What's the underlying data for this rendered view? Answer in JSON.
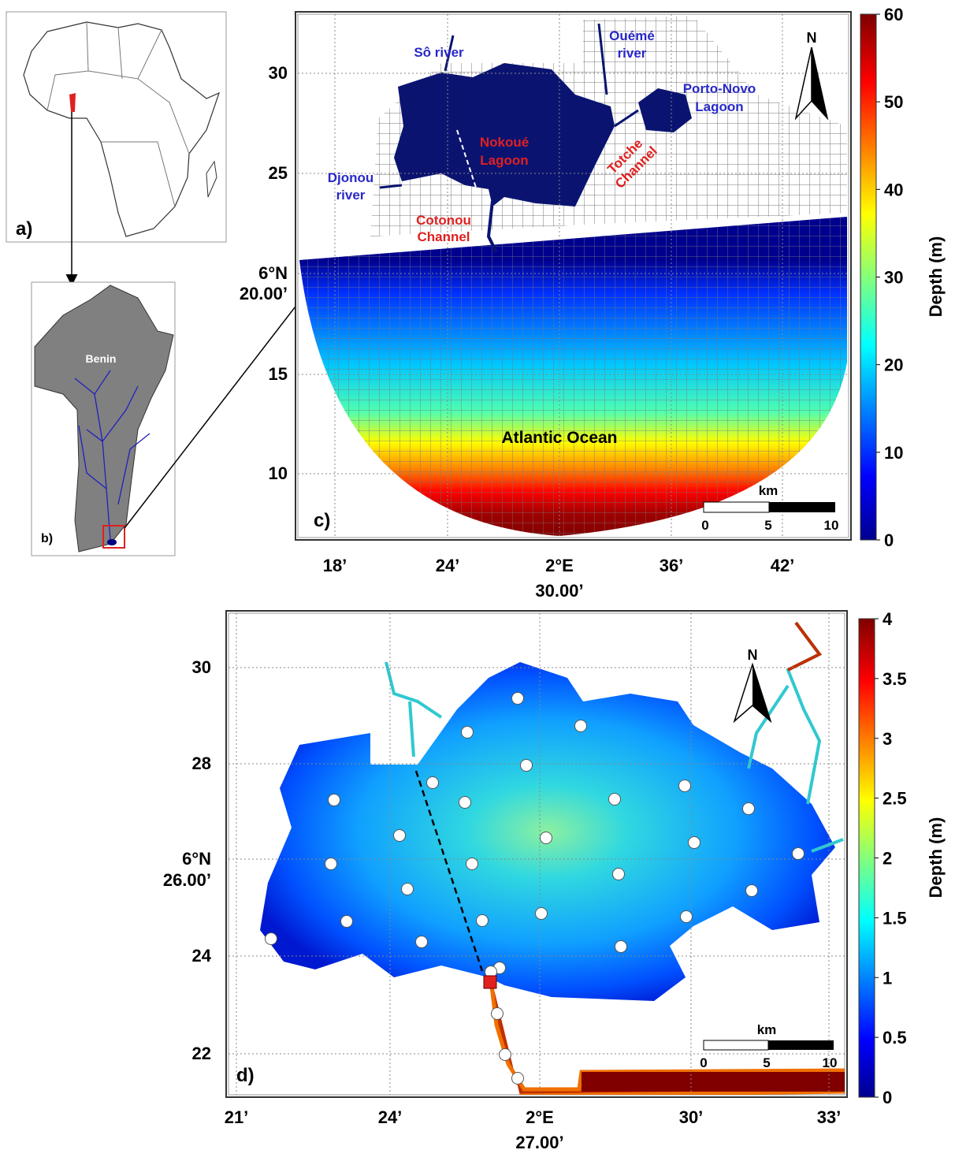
{
  "panel_a": {
    "label": "a)"
  },
  "panel_b": {
    "label": "b)",
    "country": "Benin"
  },
  "panel_c": {
    "label": "c)",
    "y_ticks": [
      [
        "30"
      ],
      [
        "25"
      ],
      [
        "6°N",
        "20.00’"
      ],
      [
        "15"
      ],
      [
        "10"
      ]
    ],
    "x_ticks": [
      [
        "18’"
      ],
      [
        "24’"
      ],
      [
        "2°E",
        "30.00’"
      ],
      [
        "36’"
      ],
      [
        "42’"
      ]
    ],
    "places": {
      "so_river": [
        "Sô river"
      ],
      "oueme_river": [
        "Ouémé",
        "river"
      ],
      "porto_novo": [
        "Porto-Novo",
        "Lagoon"
      ],
      "nokoue": [
        "Nokoué",
        "Lagoon"
      ],
      "totche": [
        "Totche",
        "Channel"
      ],
      "djonou": [
        "Djonou",
        "river"
      ],
      "cotonou": [
        "Cotonou",
        "Channel"
      ],
      "ocean": [
        "Atlantic Ocean"
      ]
    },
    "north": "N",
    "scale": {
      "unit": "km",
      "labels": [
        "0",
        "5",
        "10"
      ]
    },
    "colorbar": {
      "title": "Depth (m)",
      "lim": [
        0,
        60
      ],
      "ticks": [
        0,
        10,
        20,
        30,
        40,
        50,
        60
      ]
    }
  },
  "panel_d": {
    "label": "d)",
    "y_ticks": [
      [
        "30"
      ],
      [
        "28"
      ],
      [
        "6°N",
        "26.00’"
      ],
      [
        "24"
      ],
      [
        "22"
      ]
    ],
    "x_ticks": [
      [
        "21’"
      ],
      [
        "24’"
      ],
      [
        "2°E",
        "27.00’"
      ],
      [
        "30’"
      ],
      [
        "33’"
      ]
    ],
    "north": "N",
    "scale": {
      "unit": "km",
      "labels": [
        "0",
        "5",
        "10"
      ]
    },
    "colorbar": {
      "title": "Depth (m)",
      "lim": [
        0,
        4
      ],
      "ticks": [
        0,
        0.5,
        1,
        1.5,
        2,
        2.5,
        3,
        3.5,
        4
      ]
    }
  }
}
